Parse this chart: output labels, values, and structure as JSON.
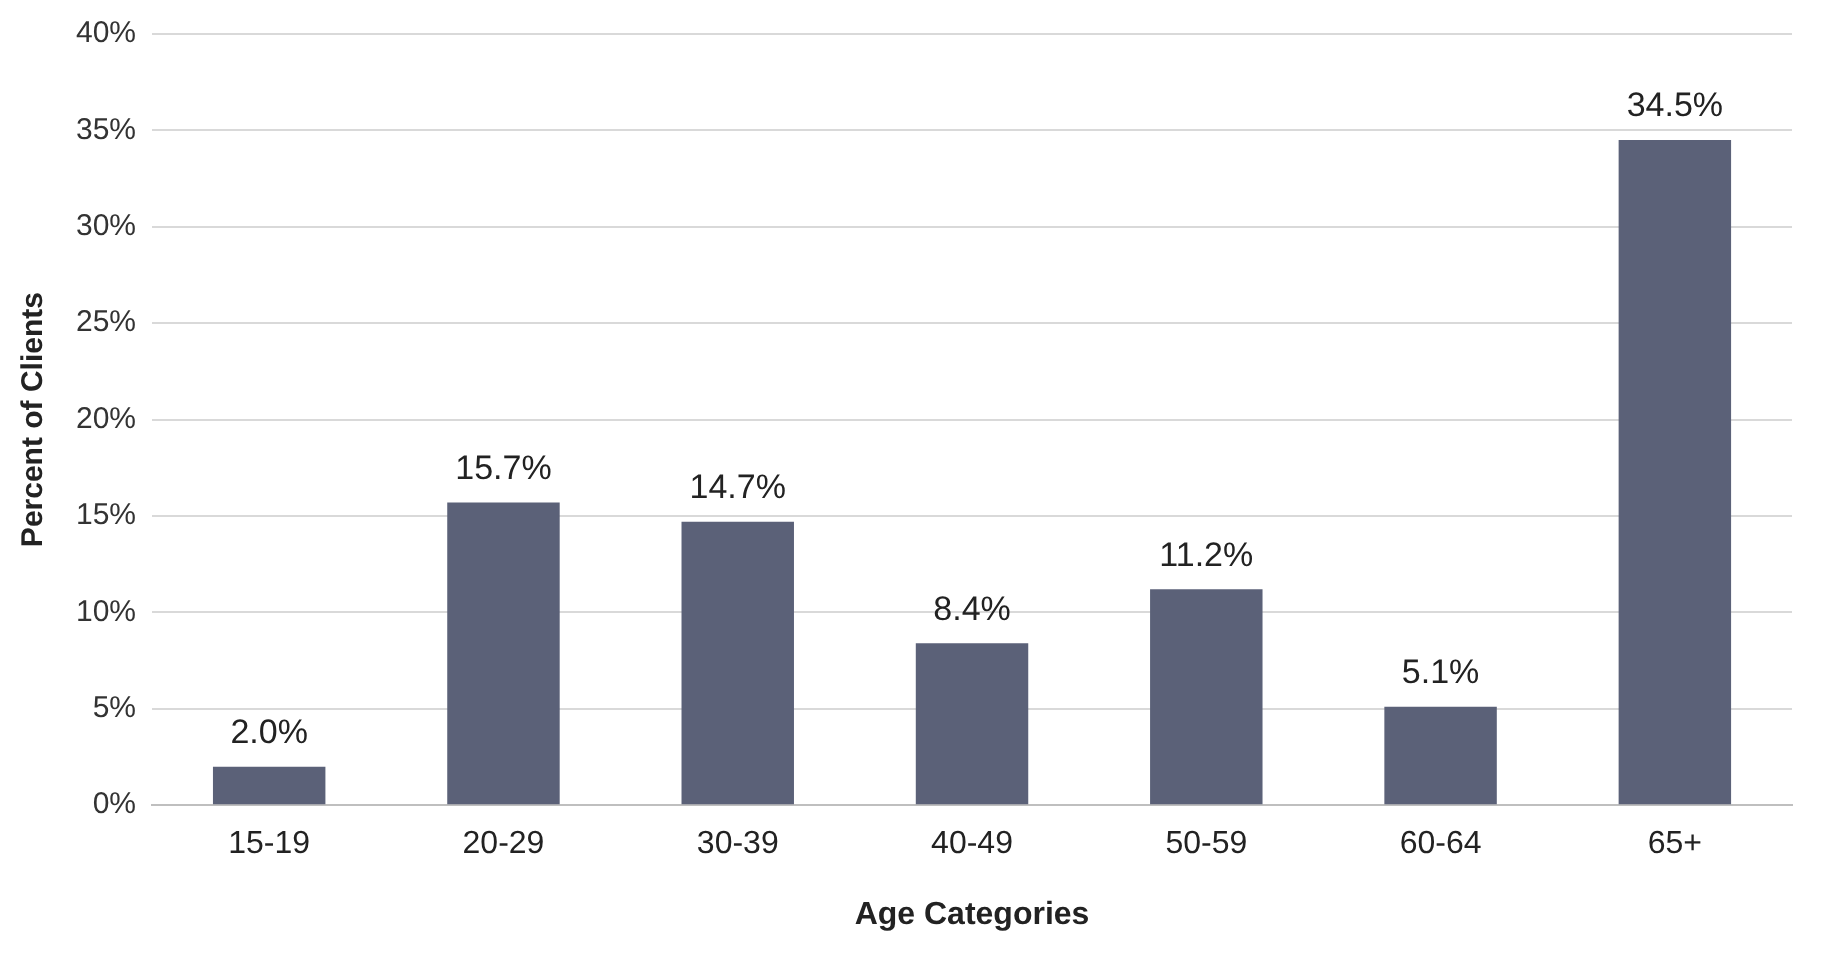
{
  "chart_data": {
    "type": "bar",
    "xlabel": "Age Categories",
    "ylabel": "Percent of Clients",
    "categories": [
      "15-19",
      "20-29",
      "30-39",
      "40-49",
      "50-59",
      "60-64",
      "65+"
    ],
    "values": [
      2.0,
      15.7,
      14.7,
      8.4,
      11.2,
      5.1,
      34.5
    ],
    "value_labels": [
      "2.0%",
      "15.7%",
      "14.7%",
      "8.4%",
      "11.2%",
      "5.1%",
      "34.5%"
    ],
    "color": "#5b6178",
    "ylim": [
      0,
      40
    ],
    "yticks": [
      {
        "value": 0,
        "label": "0%"
      },
      {
        "value": 5,
        "label": "5%"
      },
      {
        "value": 10,
        "label": "10%"
      },
      {
        "value": 15,
        "label": "15%"
      },
      {
        "value": 20,
        "label": "20%"
      },
      {
        "value": 25,
        "label": "25%"
      },
      {
        "value": 30,
        "label": "30%"
      },
      {
        "value": 35,
        "label": "35%"
      },
      {
        "value": 40,
        "label": "40%"
      }
    ],
    "grid": "y",
    "legend": false
  }
}
